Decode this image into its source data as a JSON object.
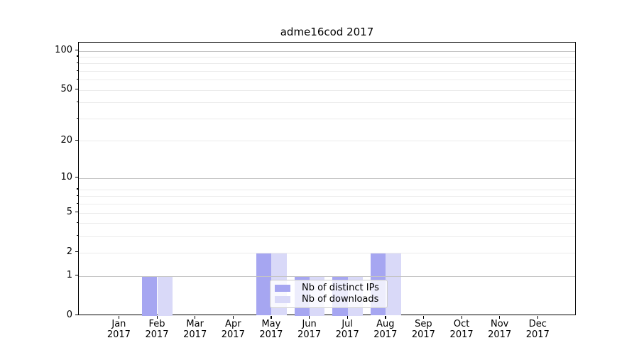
{
  "chart_data": {
    "type": "bar",
    "title": "adme16cod 2017",
    "categories": [
      "Jan 2017",
      "Feb 2017",
      "Mar 2017",
      "Apr 2017",
      "May 2017",
      "Jun 2017",
      "Jul 2017",
      "Aug 2017",
      "Sep 2017",
      "Oct 2017",
      "Nov 2017",
      "Dec 2017"
    ],
    "series": [
      {
        "name": "Nb of distinct IPs",
        "color": "#a6a6f1",
        "values": [
          0,
          1,
          0,
          0,
          2,
          1,
          1,
          2,
          0,
          0,
          0,
          0
        ]
      },
      {
        "name": "Nb of downloads",
        "color": "#d9d9f8",
        "values": [
          0,
          1,
          0,
          0,
          2,
          1,
          1,
          2,
          0,
          0,
          0,
          0
        ]
      }
    ],
    "xlabel": "",
    "ylabel": "",
    "y_scale": "log1p",
    "y_ticks": [
      0,
      1,
      2,
      5,
      10,
      20,
      50,
      100
    ],
    "y_minor_gridlines": [
      2,
      3,
      4,
      5,
      6,
      7,
      8,
      20,
      30,
      40,
      50,
      60,
      70,
      80,
      90
    ],
    "y_major_gridlines": [
      1,
      10,
      100
    ],
    "ylim": [
      0,
      115
    ],
    "grid": true,
    "legend_position": "lower center inside",
    "colors": {
      "axis": "#000000",
      "grid_major": "#c4c4c4",
      "grid_minor": "#ebebeb",
      "legend_border": "#cccccc"
    }
  }
}
